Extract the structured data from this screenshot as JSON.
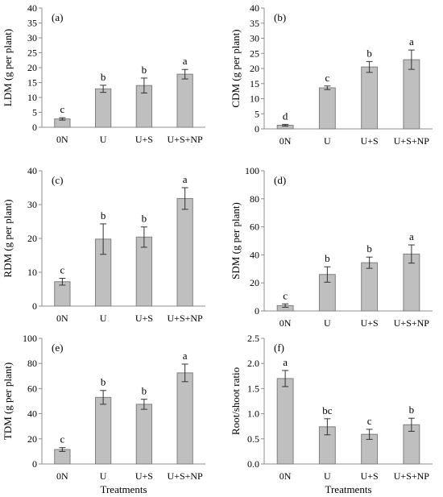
{
  "chart_data": [
    {
      "type": "bar",
      "panel_label": "(a)",
      "ylabel": "LDM (g per plant)",
      "xlabel": "",
      "categories": [
        "0N",
        "U",
        "U+S",
        "U+S+NP"
      ],
      "values": [
        2.8,
        12.9,
        14.0,
        17.8
      ],
      "errors": [
        0.4,
        1.2,
        2.5,
        1.6
      ],
      "letters": [
        "c",
        "b",
        "b",
        "a"
      ],
      "ylim": [
        0,
        40
      ],
      "yticks": [
        "0",
        "5",
        "10",
        "15",
        "20",
        "25",
        "30",
        "35",
        "40"
      ]
    },
    {
      "type": "bar",
      "panel_label": "(b)",
      "ylabel": "CDM (g per plant)",
      "xlabel": "",
      "categories": [
        "0N",
        "U",
        "U+S",
        "U+S+NP"
      ],
      "values": [
        1.2,
        13.6,
        20.5,
        22.9
      ],
      "errors": [
        0.3,
        0.6,
        1.8,
        3.2
      ],
      "letters": [
        "d",
        "c",
        "b",
        "a"
      ],
      "ylim": [
        0,
        40
      ],
      "yticks": [
        "0",
        "5",
        "10",
        "15",
        "20",
        "25",
        "30",
        "35",
        "40"
      ]
    },
    {
      "type": "bar",
      "panel_label": "(c)",
      "ylabel": "RDM (g per plant)",
      "xlabel": "",
      "categories": [
        "0N",
        "U",
        "U+S",
        "U+S+NP"
      ],
      "values": [
        7.2,
        19.8,
        20.4,
        31.8
      ],
      "errors": [
        1.0,
        4.5,
        3.0,
        3.2
      ],
      "letters": [
        "c",
        "b",
        "b",
        "a"
      ],
      "ylim": [
        0,
        40
      ],
      "yticks": [
        "0",
        "10",
        "20",
        "30",
        "40"
      ]
    },
    {
      "type": "bar",
      "panel_label": "(d)",
      "ylabel": "SDM (g per plant)",
      "xlabel": "",
      "categories": [
        "0N",
        "U",
        "U+S",
        "U+S+NP"
      ],
      "values": [
        3.8,
        26.0,
        34.4,
        40.6
      ],
      "errors": [
        1.2,
        5.5,
        4.0,
        6.5
      ],
      "letters": [
        "c",
        "b",
        "b",
        "a"
      ],
      "ylim": [
        0,
        100
      ],
      "yticks": [
        "0",
        "20",
        "40",
        "60",
        "80",
        "100"
      ]
    },
    {
      "type": "bar",
      "panel_label": "(e)",
      "ylabel": "TDM (g per plant)",
      "xlabel": "Treatments",
      "categories": [
        "0N",
        "U",
        "U+S",
        "U+S+NP"
      ],
      "values": [
        11.5,
        53.0,
        47.5,
        72.5
      ],
      "errors": [
        1.5,
        5.5,
        4.0,
        7.0
      ],
      "letters": [
        "c",
        "b",
        "b",
        "a"
      ],
      "ylim": [
        0,
        100
      ],
      "yticks": [
        "0",
        "20",
        "40",
        "60",
        "80",
        "100"
      ]
    },
    {
      "type": "bar",
      "panel_label": "(f)",
      "ylabel": "Root/shoot ratio",
      "xlabel": "Treatments",
      "categories": [
        "0N",
        "U",
        "U+S",
        "U+S+NP"
      ],
      "values": [
        1.7,
        0.74,
        0.59,
        0.78
      ],
      "errors": [
        0.16,
        0.16,
        0.1,
        0.13
      ],
      "letters": [
        "a",
        "bc",
        "c",
        "b"
      ],
      "ylim": [
        0,
        2.5
      ],
      "yticks": [
        "0.0",
        "0.5",
        "1.0",
        "1.5",
        "2.0",
        "2.5"
      ]
    }
  ],
  "colors": {
    "bar_fill": "#bfbfbf",
    "bar_stroke": "#7f7f7f",
    "axis": "#8c8c8c",
    "text": "#000000"
  }
}
